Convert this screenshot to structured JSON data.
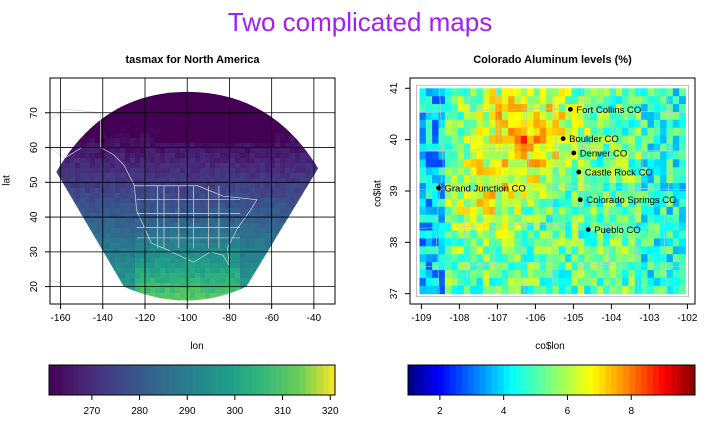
{
  "title": "Two complicated maps",
  "chart_data": [
    {
      "type": "heatmap",
      "title": "tasmax for North America",
      "xlabel": "lon",
      "ylabel": "lat",
      "xlim": [
        -165,
        -30
      ],
      "ylim": [
        15,
        80
      ],
      "x_ticks": [
        -160,
        -140,
        -120,
        -100,
        -80,
        -60,
        -40
      ],
      "y_ticks": [
        20,
        30,
        40,
        50,
        60,
        70
      ],
      "grid": true,
      "projection_domain": {
        "top_arc": [
          [
            -162,
            53
          ],
          [
            -135,
            70
          ],
          [
            -100,
            76
          ],
          [
            -65,
            70
          ],
          [
            -38,
            54
          ]
        ],
        "bottom_arc": [
          [
            -130,
            20
          ],
          [
            -100,
            14
          ],
          [
            -72,
            20
          ]
        ]
      },
      "colorbar": {
        "palette": "viridis",
        "min": 261,
        "max": 321,
        "ticks": [
          270,
          280,
          290,
          300,
          310,
          320
        ]
      }
    },
    {
      "type": "heatmap",
      "title": "Colorado Aluminum levels (%)",
      "xlabel": "co$lon",
      "ylabel": "co$lat",
      "xlim": [
        -109.3,
        -101.8
      ],
      "ylim": [
        36.8,
        41.2
      ],
      "x_ticks": [
        -109,
        -108,
        -107,
        -106,
        -105,
        -104,
        -103,
        -102
      ],
      "y_ticks": [
        37,
        38,
        39,
        40,
        41
      ],
      "grid": false,
      "extent": {
        "lon": [
          -109.05,
          -102.05
        ],
        "lat": [
          37.0,
          41.0
        ]
      },
      "cities": [
        {
          "name": "Fort Collins CO",
          "lon": -105.08,
          "lat": 40.59
        },
        {
          "name": "Boulder CO",
          "lon": -105.27,
          "lat": 40.02
        },
        {
          "name": "Denver CO",
          "lon": -104.99,
          "lat": 39.74
        },
        {
          "name": "Castle Rock CO",
          "lon": -104.86,
          "lat": 39.37
        },
        {
          "name": "Grand Junction CO",
          "lon": -108.55,
          "lat": 39.06
        },
        {
          "name": "Colorado Springs CO",
          "lon": -104.82,
          "lat": 38.83
        },
        {
          "name": "Pueblo CO",
          "lon": -104.61,
          "lat": 38.25
        }
      ],
      "colorbar": {
        "palette": "jet",
        "min": 1,
        "max": 10,
        "ticks": [
          2,
          4,
          6,
          8
        ]
      }
    }
  ]
}
